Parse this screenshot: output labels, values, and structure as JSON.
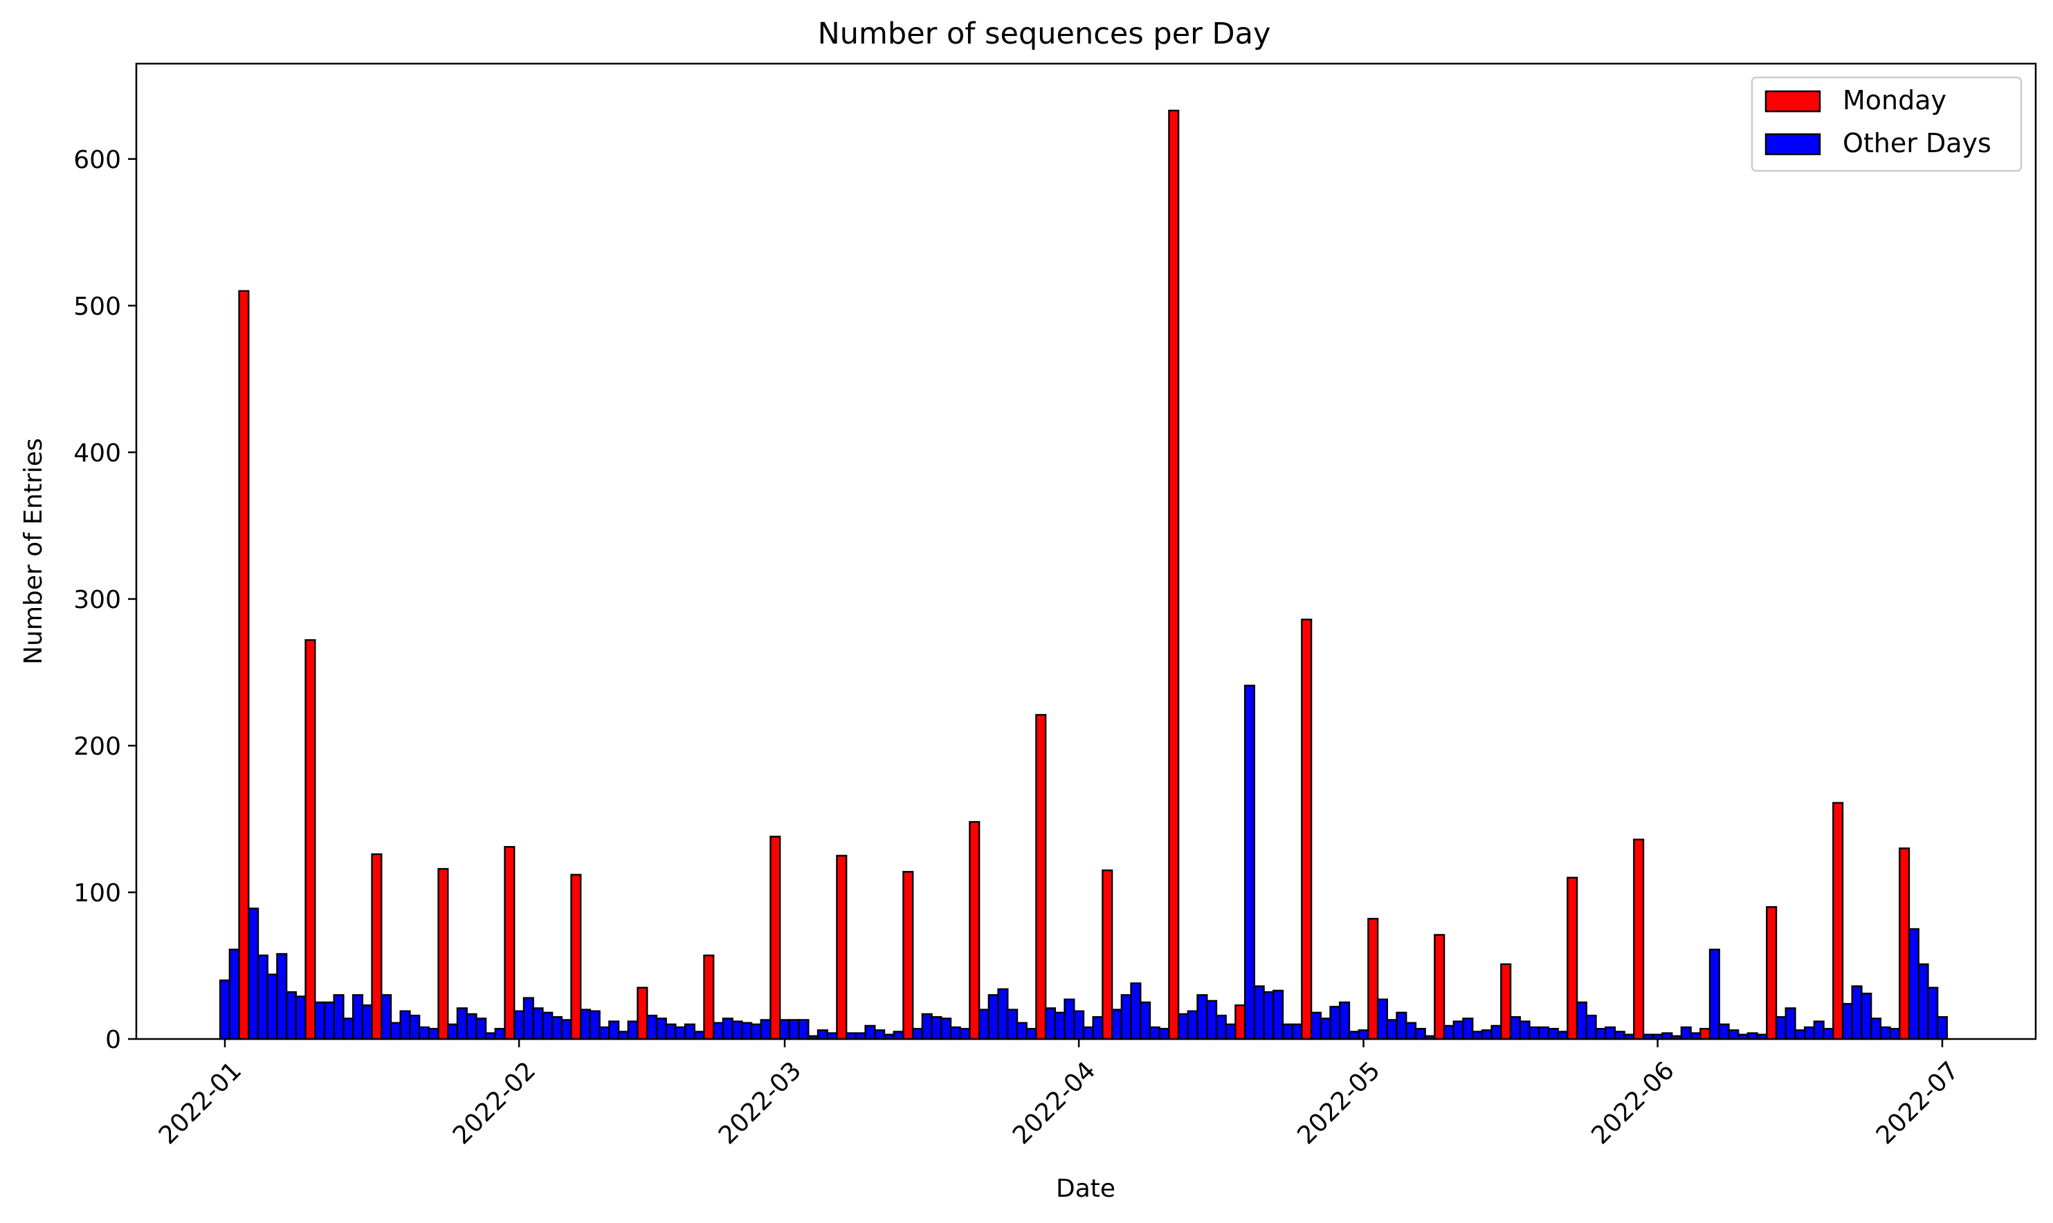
{
  "chart_data": {
    "type": "bar",
    "title": "Number of sequences per Day",
    "xlabel": "Date",
    "ylabel": "Number of Entries",
    "x_start": "2022-01-01",
    "x_end": "2022-07-01",
    "ylim": [
      0,
      665
    ],
    "yticks": [
      0,
      100,
      200,
      300,
      400,
      500,
      600
    ],
    "xticks": [
      {
        "date": "2022-01-01",
        "label": "2022-01"
      },
      {
        "date": "2022-02-01",
        "label": "2022-02"
      },
      {
        "date": "2022-03-01",
        "label": "2022-03"
      },
      {
        "date": "2022-04-01",
        "label": "2022-04"
      },
      {
        "date": "2022-05-01",
        "label": "2022-05"
      },
      {
        "date": "2022-06-01",
        "label": "2022-06"
      },
      {
        "date": "2022-07-01",
        "label": "2022-07"
      }
    ],
    "legend": {
      "position": "top-right"
    },
    "series": [
      {
        "name": "Monday",
        "color": "#ff0000"
      },
      {
        "name": "Other Days",
        "color": "#0000ff"
      }
    ],
    "values": [
      40,
      61,
      510,
      89,
      57,
      44,
      58,
      32,
      29,
      272,
      25,
      25,
      30,
      14,
      30,
      23,
      126,
      30,
      11,
      19,
      16,
      8,
      7,
      116,
      10,
      21,
      17,
      14,
      4,
      7,
      131,
      19,
      28,
      21,
      18,
      15,
      13,
      112,
      20,
      19,
      8,
      12,
      5,
      12,
      35,
      16,
      14,
      10,
      8,
      10,
      5,
      57,
      11,
      14,
      12,
      11,
      10,
      13,
      138,
      13,
      13,
      13,
      2,
      6,
      4,
      125,
      4,
      4,
      9,
      6,
      3,
      5,
      114,
      7,
      17,
      15,
      14,
      8,
      7,
      148,
      20,
      30,
      34,
      20,
      11,
      7,
      221,
      21,
      18,
      27,
      19,
      8,
      15,
      115,
      20,
      30,
      38,
      25,
      8,
      7,
      633,
      17,
      19,
      30,
      26,
      16,
      10,
      23,
      241,
      36,
      32,
      33,
      10,
      10,
      286,
      18,
      14,
      22,
      25,
      5,
      6,
      82,
      27,
      13,
      18,
      11,
      7,
      2,
      71,
      9,
      12,
      14,
      5,
      6,
      9,
      51,
      15,
      12,
      8,
      8,
      7,
      5,
      110,
      25,
      16,
      7,
      8,
      5,
      3,
      136,
      3,
      3,
      4,
      2,
      8,
      4,
      7,
      61,
      10,
      6,
      3,
      4,
      3,
      90,
      15,
      21,
      6,
      8,
      12,
      7,
      161,
      24,
      36,
      31,
      14,
      8,
      7,
      130,
      75,
      51,
      35,
      15
    ]
  }
}
